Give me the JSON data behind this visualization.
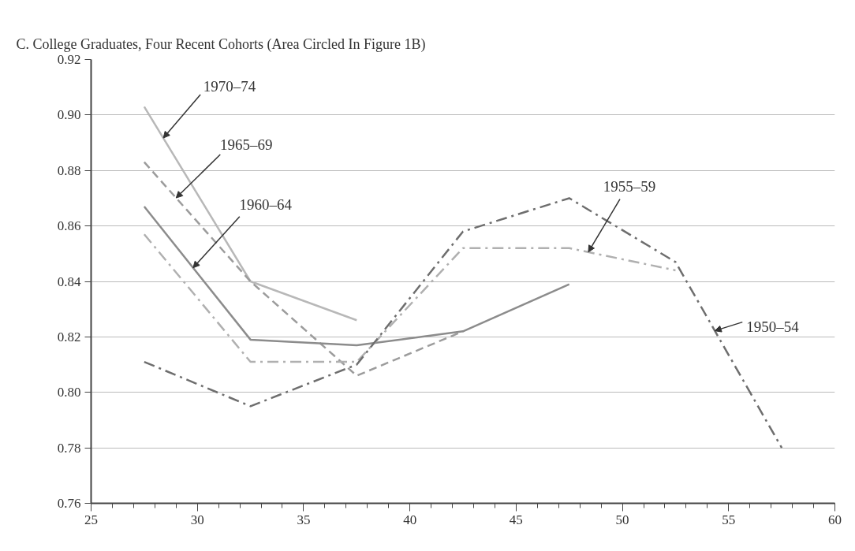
{
  "chart_data": {
    "type": "line",
    "title": "C. College Graduates, Four Recent Cohorts (Area Circled In Figure 1B)",
    "x": [
      27.5,
      32.5,
      37.5,
      42.5,
      47.5,
      52.5,
      57.5
    ],
    "series": [
      {
        "color": "#b8b8b8",
        "line_style": "solid",
        "values": [
          0.903,
          0.84,
          0.826,
          null,
          null,
          null,
          null
        ]
      },
      {
        "color": "#9c9c9c",
        "line_style": "dashed",
        "values": [
          0.883,
          0.84,
          0.806,
          0.822,
          null,
          null,
          null
        ]
      },
      {
        "color": "#8c8c8c",
        "line_style": "solid",
        "values": [
          0.867,
          0.819,
          0.817,
          0.822,
          0.839,
          null,
          null
        ]
      },
      {
        "color": "#b0b0b0",
        "line_style": "dashdot",
        "values": [
          0.857,
          0.811,
          0.811,
          0.852,
          0.852,
          0.844,
          null
        ]
      },
      {
        "color": "#6e6e6e",
        "line_style": "dashdot",
        "values": [
          0.811,
          0.795,
          0.81,
          0.858,
          0.87,
          0.847,
          0.78
        ]
      }
    ],
    "annotations": [
      {
        "text": "1970–74",
        "x": 28.4,
        "y": 0.8917
      },
      {
        "text": "1965–69",
        "x": 29.0,
        "y": 0.8701
      },
      {
        "text": "1960–64",
        "x": 29.8,
        "y": 0.8449
      },
      {
        "text": "1955–59",
        "x": 48.4,
        "y": 0.8506
      },
      {
        "text": "1950–54",
        "x": 54.35,
        "y": 0.8222
      }
    ],
    "xlim": [
      25,
      60
    ],
    "xticks": [
      25,
      30,
      35,
      40,
      45,
      50,
      55,
      60
    ],
    "ylim": [
      0.76,
      0.92
    ],
    "yticks": [
      0.76,
      0.78,
      {
        "value": 0.8,
        "label": "0.80"
      },
      0.82,
      0.84,
      0.86,
      0.88,
      {
        "value": 0.9,
        "label": "0.90"
      },
      0.92
    ],
    "grid": "y",
    "marker": "none"
  }
}
